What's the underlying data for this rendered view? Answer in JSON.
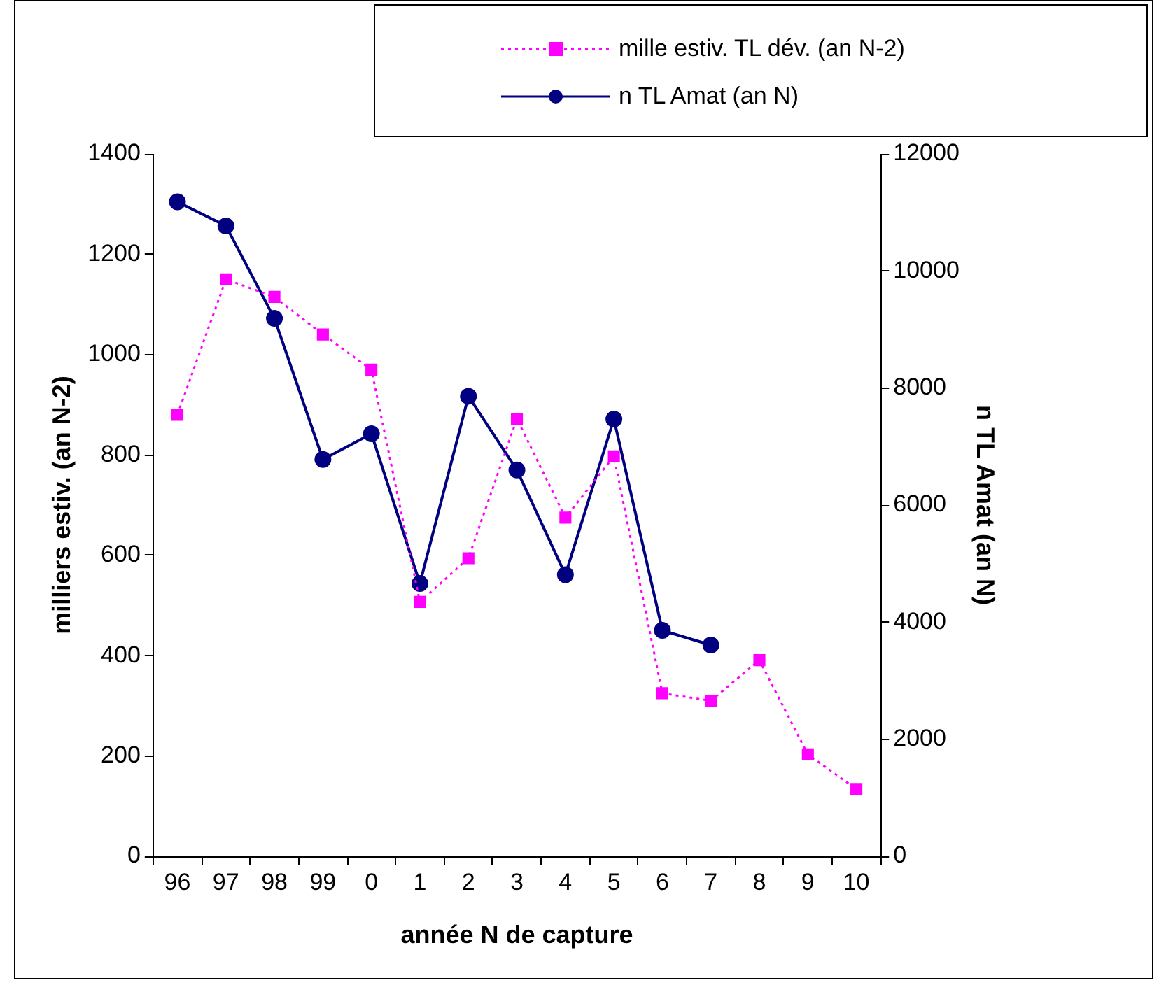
{
  "chart_data": {
    "type": "line",
    "xlabel": "année N de capture",
    "ylabel": "milliers estiv. (an N-2)",
    "y2label": "n TL Amat (an N)",
    "categories": [
      "96",
      "97",
      "98",
      "99",
      "0",
      "1",
      "2",
      "3",
      "4",
      "5",
      "6",
      "7",
      "8",
      "9",
      "10"
    ],
    "series": [
      {
        "name": "mille estiv. TL dév. (an N-2)",
        "color": "#ff00ff",
        "marker": "square",
        "line_style": "dotted",
        "values": [
          880,
          1150,
          1115,
          1040,
          970,
          507,
          594,
          872,
          675,
          797,
          325,
          310,
          391,
          203,
          134
        ]
      },
      {
        "name": "n TL Amat (an N)",
        "color": "#000080",
        "marker": "circle",
        "line_style": "solid",
        "axis": "y2",
        "values": [
          11180,
          10770,
          9190,
          6780,
          7220,
          4660,
          7860,
          6600,
          4810,
          7470,
          3860,
          3610,
          null,
          null,
          null
        ]
      }
    ],
    "ylim": [
      0,
      1400
    ],
    "yticks": [
      0,
      200,
      400,
      600,
      800,
      1000,
      1200,
      1400
    ],
    "y2lim": [
      0,
      12000
    ],
    "y2ticks": [
      0,
      2000,
      4000,
      6000,
      8000,
      10000,
      12000
    ],
    "grid": false,
    "legend": "top right"
  }
}
